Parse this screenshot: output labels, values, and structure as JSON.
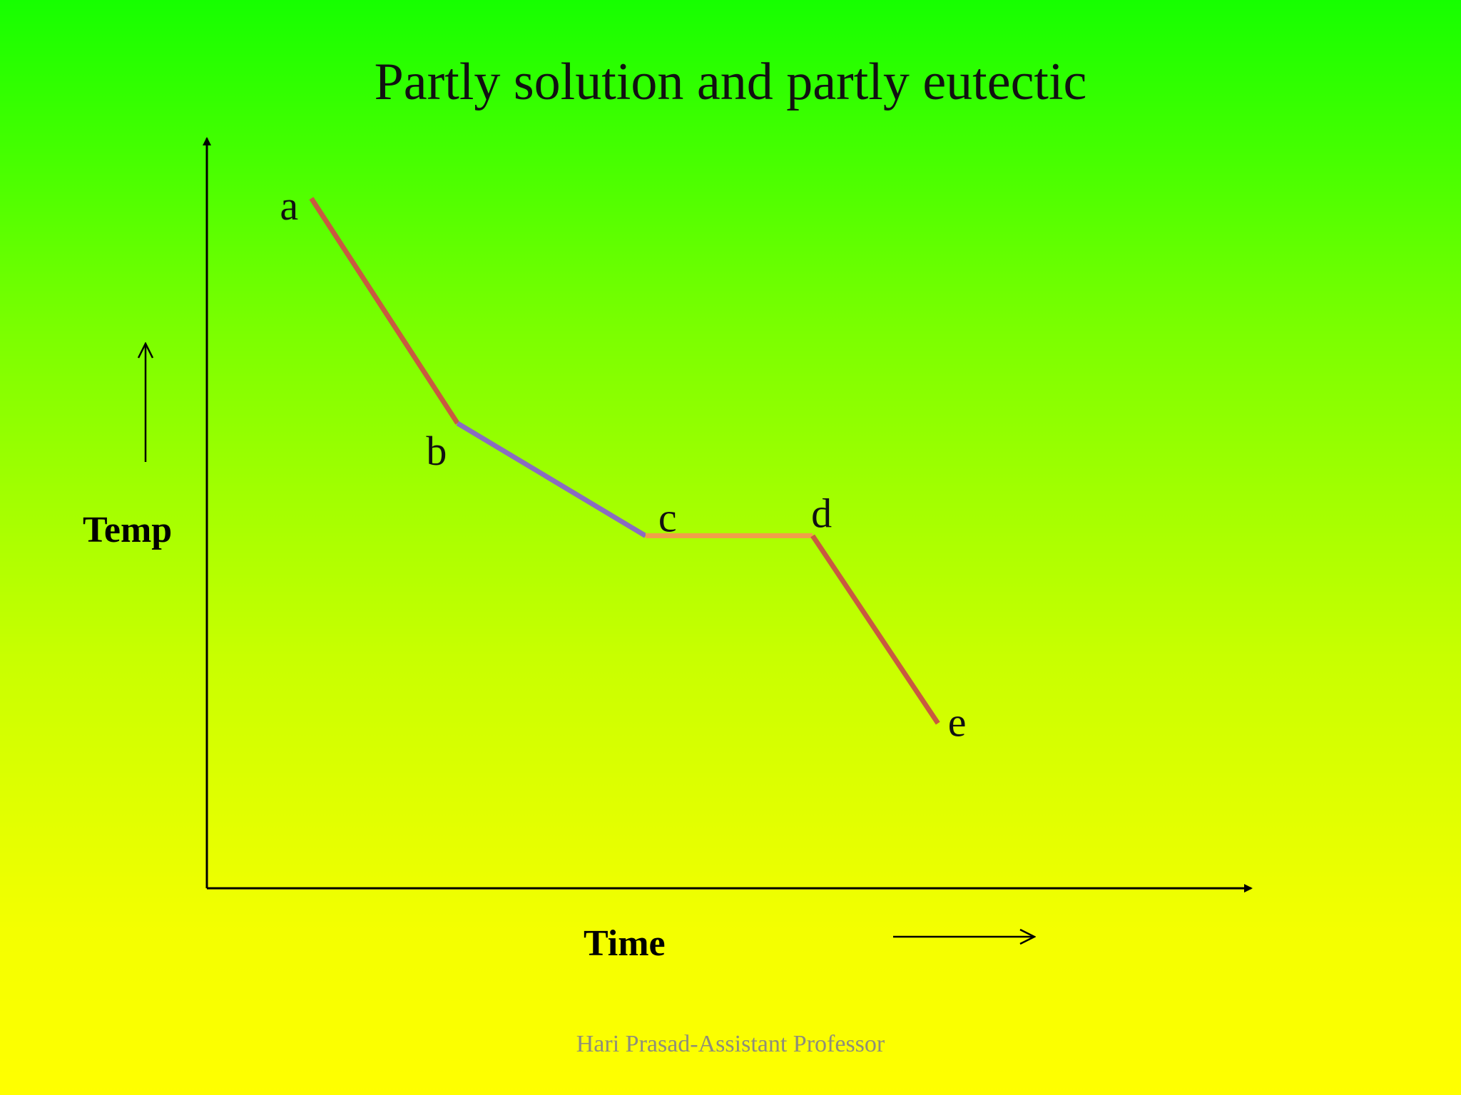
{
  "chart_data": {
    "type": "line",
    "title": "Partly solution and partly eutectic",
    "xlabel": "Time",
    "ylabel": "Temp",
    "grid": false,
    "xlim": [
      0,
      100
    ],
    "ylim": [
      0,
      100
    ],
    "points": [
      {
        "label": "a",
        "x": 10,
        "y": 92
      },
      {
        "label": "b",
        "x": 24,
        "y": 62
      },
      {
        "label": "c",
        "x": 42,
        "y": 47
      },
      {
        "label": "d",
        "x": 58,
        "y": 47
      },
      {
        "label": "e",
        "x": 70,
        "y": 22
      }
    ],
    "segments": [
      {
        "from": "a",
        "to": "b",
        "color": "#c85a40"
      },
      {
        "from": "b",
        "to": "c",
        "color": "#8a6cc0"
      },
      {
        "from": "c",
        "to": "d",
        "color": "#f0a048"
      },
      {
        "from": "d",
        "to": "e",
        "color": "#c85a40"
      }
    ]
  },
  "footer": "Hari Prasad-Assistant Professor"
}
